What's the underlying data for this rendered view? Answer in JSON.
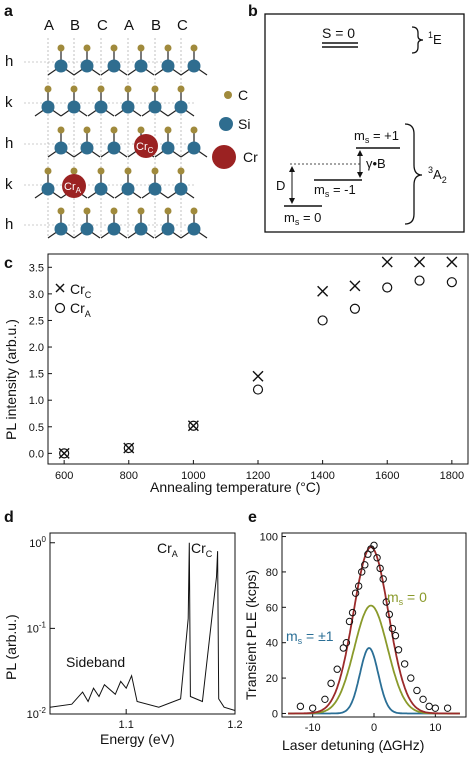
{
  "panel_labels": {
    "a": "a",
    "b": "b",
    "c": "c",
    "d": "d",
    "e": "e"
  },
  "panel_a": {
    "columns": [
      "A",
      "B",
      "C",
      "A",
      "B",
      "C"
    ],
    "rows": [
      "h",
      "k",
      "h",
      "k",
      "h"
    ],
    "legend": [
      {
        "label": "C",
        "color": "#a08a3c"
      },
      {
        "label": "Si",
        "color": "#2f6d8f"
      },
      {
        "label": "Cr",
        "color": "#9b2222"
      }
    ],
    "defect_labels": [
      {
        "main": "Cr",
        "sub": "C"
      },
      {
        "main": "Cr",
        "sub": "A"
      }
    ]
  },
  "panel_b": {
    "top_state": "S = 0",
    "top_term": {
      "sup": "1",
      "main": "E"
    },
    "bottom_term": {
      "sup": "3",
      "main": "A",
      "sub": "2"
    },
    "levels": [
      {
        "pre": "m",
        "sub": "s",
        "post": " = +1"
      },
      {
        "pre": "m",
        "sub": "s",
        "post": " = -1"
      },
      {
        "pre": "m",
        "sub": "s",
        "post": " = 0"
      }
    ],
    "gamma_label": "γ•B",
    "d_label": "D"
  },
  "chart_data": [
    {
      "type": "scatter",
      "xlabel": "Annealing temperature (°C)",
      "ylabel": "PL intensity (arb.u.)",
      "xlim": [
        550,
        1850
      ],
      "ylim": [
        -0.2,
        3.75
      ],
      "xticks": [
        600,
        800,
        1000,
        1200,
        1400,
        1600,
        1800
      ],
      "yticks": [
        "0.0",
        "0.5",
        "1.0",
        "1.5",
        "2.0",
        "2.5",
        "3.0",
        "3.5"
      ],
      "series": [
        {
          "name": "Cr_C",
          "legend": {
            "main": "Cr",
            "sub": "C"
          },
          "marker": "x",
          "x": [
            600,
            800,
            1000,
            1200,
            1400,
            1500,
            1600,
            1700,
            1800
          ],
          "y": [
            0.0,
            0.1,
            0.52,
            1.45,
            3.05,
            3.15,
            3.6,
            3.6,
            3.6
          ]
        },
        {
          "name": "Cr_A",
          "legend": {
            "main": "Cr",
            "sub": "A"
          },
          "marker": "o",
          "x": [
            600,
            800,
            1000,
            1200,
            1400,
            1500,
            1600,
            1700,
            1800
          ],
          "y": [
            0.0,
            0.1,
            0.52,
            1.2,
            2.5,
            2.72,
            3.12,
            3.25,
            3.22
          ]
        }
      ]
    },
    {
      "type": "line",
      "xlabel": "Energy (eV)",
      "ylabel": "PL (arb.u.)",
      "xlim": [
        1.03,
        1.2
      ],
      "ylim_log": [
        0.01,
        1.3
      ],
      "xticks": [
        "1.1",
        "1.2"
      ],
      "yticks": [
        {
          "base": "10",
          "exp": "-2"
        },
        {
          "base": "10",
          "exp": "-1"
        },
        {
          "base": "10",
          "exp": "0"
        }
      ],
      "annotations": {
        "sideband": "Sideband",
        "peak1": {
          "main": "Cr",
          "sub": "A"
        },
        "peak2": {
          "main": "Cr",
          "sub": "C"
        }
      },
      "x": [
        1.03,
        1.05,
        1.06,
        1.065,
        1.07,
        1.075,
        1.08,
        1.09,
        1.095,
        1.1,
        1.105,
        1.11,
        1.13,
        1.15,
        1.157,
        1.158,
        1.159,
        1.17,
        1.183,
        1.184,
        1.185,
        1.19,
        1.2
      ],
      "y": [
        0.012,
        0.013,
        0.018,
        0.014,
        0.02,
        0.016,
        0.022,
        0.017,
        0.024,
        0.02,
        0.028,
        0.014,
        0.012,
        0.015,
        0.13,
        1.0,
        0.016,
        0.014,
        0.4,
        0.8,
        0.015,
        0.012,
        0.011
      ]
    },
    {
      "type": "line",
      "xlabel": "Laser detuning (∆GHz)",
      "ylabel": "Transient PLE (kcps)",
      "xlim": [
        -15,
        15
      ],
      "ylim": [
        -2,
        102
      ],
      "xticks": [
        "-10",
        "0",
        "10"
      ],
      "yticks": [
        "0",
        "20",
        "40",
        "60",
        "80",
        "100"
      ],
      "annotations": {
        "ms0": {
          "pre": "m",
          "sub": "s",
          "post": " = 0",
          "color": "#8a9a2b"
        },
        "ms1": {
          "pre": "m",
          "sub": "s",
          "post": " = ±1",
          "color": "#2b6f96"
        }
      },
      "series": [
        {
          "name": "total fit",
          "color": "#9b2a2a",
          "center": -0.5,
          "amplitude": 94,
          "width": 4.2
        },
        {
          "name": "ms = 0",
          "color": "#8a9a2b",
          "center": -0.5,
          "amplitude": 61,
          "width": 4.0
        },
        {
          "name": "ms = ±1",
          "color": "#2b6f96",
          "center": -0.8,
          "amplitude": 37,
          "width": 2.2
        }
      ],
      "points_x": [
        -12,
        -10,
        -8,
        -7,
        -6,
        -5,
        -4.5,
        -4,
        -3.5,
        -3,
        -2.5,
        -2,
        -1.5,
        -1,
        -0.5,
        0,
        0.5,
        1,
        1.5,
        2,
        2.5,
        3,
        3.5,
        4,
        5,
        6,
        7,
        8,
        9,
        10,
        12
      ],
      "points_y": [
        4,
        3,
        8,
        17,
        25,
        37,
        40,
        52,
        57,
        68,
        72,
        80,
        84,
        90,
        93,
        95,
        88,
        82,
        76,
        63,
        56,
        48,
        44,
        36,
        28,
        20,
        13,
        8,
        4,
        3,
        3
      ]
    }
  ]
}
